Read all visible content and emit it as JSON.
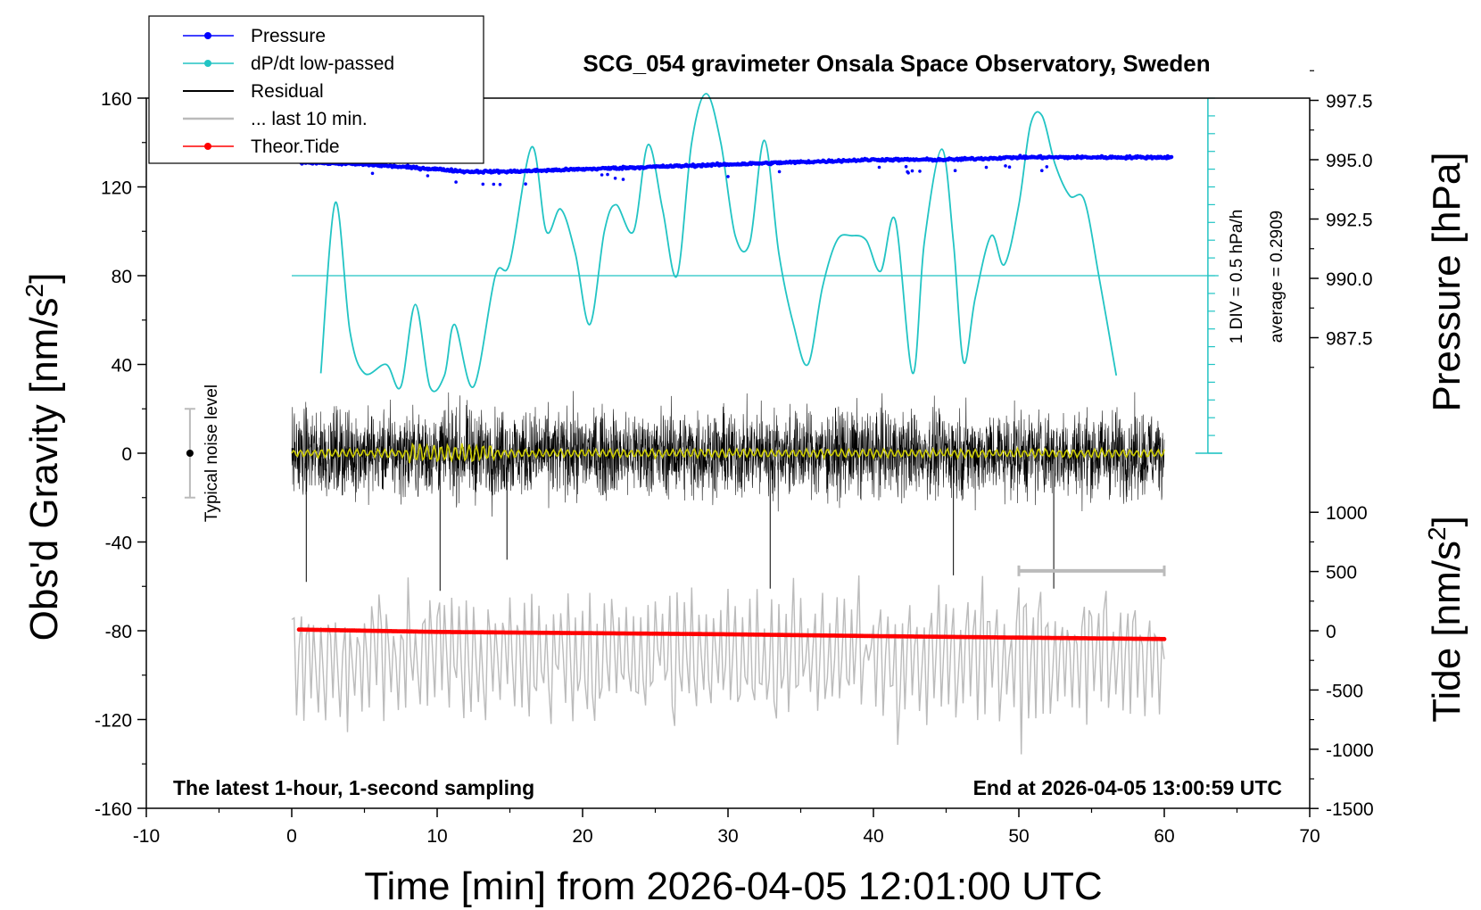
{
  "chart_data": {
    "type": "line",
    "title": "SCG_054 gravimeter Onsala Space Observatory, Sweden",
    "xlabel": "Time [min] from 2026-04-05 12:01:00 UTC",
    "ylabel_left_main": "Obs'd Gravity [nm/s",
    "ylabel_left_sup": "2",
    "ylabel_left_end": "]",
    "ylabel_right_top": "Pressure [hPa]",
    "ylabel_right_bottom_main": "Tide [nm/s",
    "ylabel_right_bottom_sup": "2",
    "ylabel_right_bottom_end": "]",
    "footer_left": "The latest 1-hour, 1-second sampling",
    "footer_right": "End at 2026-04-05 13:00:59 UTC",
    "xlim": [
      -10,
      70
    ],
    "ylim": [
      -160,
      160
    ],
    "x_ticks": [
      "-10",
      "0",
      "10",
      "20",
      "30",
      "40",
      "50",
      "60",
      "70"
    ],
    "y_ticks": [
      "160",
      "120",
      "80",
      "40",
      "0",
      "-40",
      "-80",
      "-120",
      "-160"
    ],
    "pressure_axis": {
      "range": [
        985.0,
        1000.0
      ],
      "ticks": [
        "997.5",
        "995.0",
        "992.5",
        "990.0",
        "987.5"
      ]
    },
    "tide_axis": {
      "range": [
        -1500,
        1500
      ],
      "ticks": [
        "1000",
        "500",
        "0",
        "-500",
        "-1000",
        "-1500"
      ]
    },
    "noise_label": "Typical noise level",
    "noise_bar": {
      "x": -7,
      "center": 0,
      "half_range": 20
    },
    "dpdt_scale": {
      "div_label": "1 DIV = 0.5 hPa/h",
      "average_label": "average = 0.2909",
      "x": 63,
      "y_min": 0,
      "y_max": 160,
      "divisions": 20,
      "zero_line_y": 80
    },
    "last10_marker": {
      "x_start": 50,
      "x_end": 60,
      "y": -53
    },
    "series": [
      {
        "name": "Pressure",
        "color": "#0000ff",
        "marker": "dot",
        "x": [
          0.5,
          5,
          10,
          12,
          15,
          20,
          25,
          30,
          35,
          40,
          45,
          50,
          55,
          60.5
        ],
        "values": [
          994.9,
          994.8,
          994.6,
          994.5,
          994.5,
          994.6,
          994.7,
          994.8,
          994.9,
          995.0,
          995.0,
          995.1,
          995.1,
          995.1
        ]
      },
      {
        "name": "dP/dt low-passed",
        "color": "#22c4c4",
        "marker": "dot",
        "x": [
          2,
          3,
          4,
          5,
          6.5,
          7.5,
          8.5,
          9.5,
          10.5,
          11.2,
          12.5,
          14,
          15,
          16.5,
          17.5,
          18.5,
          19.5,
          20.5,
          21.5,
          22.3,
          23.5,
          24.5,
          25.5,
          26.5,
          27.5,
          28.5,
          29.5,
          30.5,
          31.5,
          32.5,
          33.5,
          34.5,
          35.5,
          36.5,
          37.5,
          38.5,
          39.5,
          40.5,
          41.5,
          42.7,
          43.5,
          44.7,
          45.5,
          46.2,
          47,
          48.1,
          49,
          50,
          50.8,
          51.6,
          52.5,
          53.5,
          54.5,
          55.5,
          56.7
        ],
        "values": [
          36,
          113,
          55,
          36,
          40,
          30,
          67,
          30,
          35,
          58,
          30,
          80,
          86,
          138,
          100,
          110,
          90,
          58,
          100,
          112,
          100,
          139,
          110,
          80,
          140,
          162,
          140,
          98,
          95,
          141,
          90,
          58,
          40,
          75,
          96,
          98,
          96,
          82,
          105,
          36,
          95,
          137,
          95,
          41,
          70,
          98,
          85,
          112,
          148,
          152,
          130,
          116,
          114,
          80,
          35
        ]
      },
      {
        "name": "Residual",
        "color": "#000000",
        "marker": "line",
        "x_range": [
          0,
          60
        ],
        "approx_amplitude": 25,
        "spike_x": [
          1,
          10.2,
          14.8,
          32.9,
          45.5,
          52.4
        ],
        "spike_values": [
          -58,
          -62,
          -48,
          -61,
          -55,
          -61
        ]
      },
      {
        "name": "... last 10 min.",
        "color": "#bbbbbb",
        "marker": "line",
        "x_range": [
          0,
          60
        ],
        "center": -92,
        "approx_amplitude": 30
      },
      {
        "name": "Theor.Tide",
        "color": "#ff0000",
        "marker": "dot",
        "x": [
          0.5,
          10,
          20,
          30,
          40,
          50,
          60
        ],
        "values": [
          10,
          -10,
          -20,
          -30,
          -45,
          -58,
          -70
        ]
      },
      {
        "color": "#cccc00",
        "marker": "line",
        "x_range": [
          0,
          60
        ],
        "center": 0,
        "approx_amplitude": 2
      }
    ]
  }
}
